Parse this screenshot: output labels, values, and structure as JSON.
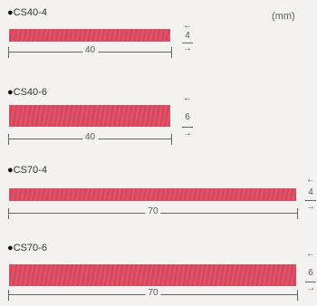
{
  "unit_label": "(mm)",
  "items": [
    {
      "name": "CS40-4",
      "length": "40",
      "thickness": "4"
    },
    {
      "name": "CS40-6",
      "length": "40",
      "thickness": "6"
    },
    {
      "name": "CS70-4",
      "length": "70",
      "thickness": "4"
    },
    {
      "name": "CS70-6",
      "length": "70",
      "thickness": "6"
    }
  ],
  "bullet": "●",
  "arrow_left": "←",
  "arrow_right": "→",
  "colors": {
    "bar": "#de4a62",
    "background": "#f4f2ee"
  }
}
